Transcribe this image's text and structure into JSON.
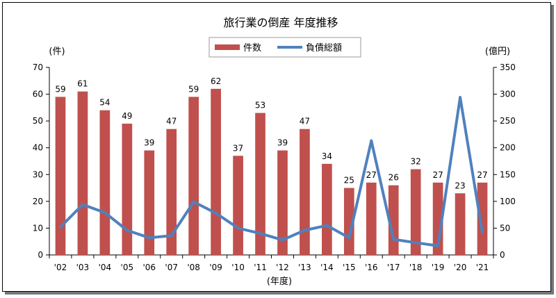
{
  "chart_data": {
    "type": "bar+line",
    "title": "旅行業の倒産 年度推移",
    "categories": [
      "'02",
      "'03",
      "'04",
      "'05",
      "'06",
      "'07",
      "'08",
      "'09",
      "'10",
      "'11",
      "'12",
      "'13",
      "'14",
      "'15",
      "'16",
      "'17",
      "'18",
      "'19",
      "'20",
      "'21"
    ],
    "series": [
      {
        "name": "件数",
        "type": "bar",
        "axis": "left",
        "color": "#c0504d",
        "values": [
          59,
          61,
          54,
          49,
          39,
          47,
          59,
          62,
          37,
          53,
          39,
          47,
          34,
          25,
          27,
          26,
          32,
          27,
          23,
          27
        ]
      },
      {
        "name": "負債総額",
        "type": "line",
        "axis": "right",
        "color": "#4f81bd",
        "values": [
          52,
          94,
          79,
          46,
          32,
          36,
          99,
          78,
          50,
          40,
          28,
          46,
          55,
          32,
          213,
          29,
          23,
          17,
          294,
          42
        ]
      }
    ],
    "y_left": {
      "label": "(件)",
      "lim": [
        0,
        70
      ],
      "ticks": [
        0,
        10,
        20,
        30,
        40,
        50,
        60,
        70
      ]
    },
    "y_right": {
      "label": "(億円)",
      "lim": [
        0,
        350
      ],
      "ticks": [
        0,
        50,
        100,
        150,
        200,
        250,
        300,
        350
      ]
    },
    "xlabel": "(年度)",
    "legend": "top-center",
    "grid": false
  }
}
